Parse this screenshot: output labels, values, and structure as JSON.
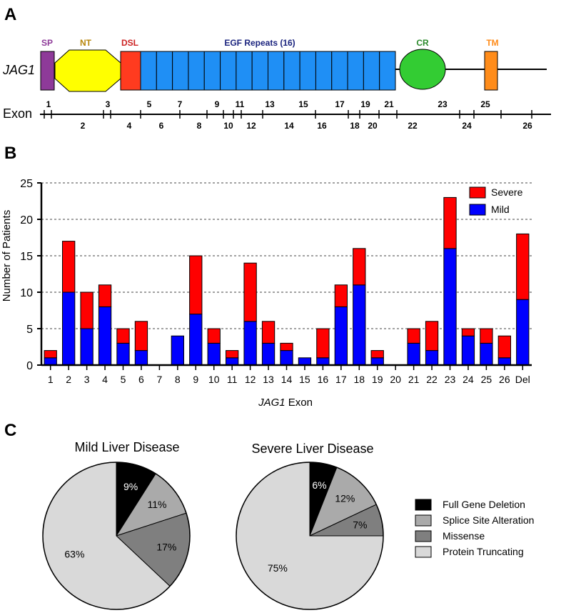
{
  "panels": {
    "a": "A",
    "b": "B",
    "c": "C"
  },
  "gene_label": "JAG1",
  "exon_label": "Exon",
  "colors": {
    "sp": "#8e3a99",
    "nt": "#ffff00",
    "dsl": "#ff3b1f",
    "egf": "#1f8ff5",
    "cr": "#33cc33",
    "tm": "#ff8c1a",
    "severe": "#ff0000",
    "mild": "#0000ff",
    "deletion": "#000000",
    "splice": "#aaaaaa",
    "missense": "#7f7f7f",
    "truncating": "#d9d9d9"
  },
  "domains": {
    "sp": "SP",
    "nt": "NT",
    "dsl": "DSL",
    "egf": "EGF Repeats (16)",
    "cr": "CR",
    "tm": "TM"
  },
  "exons_top": [
    "1",
    "3",
    "5",
    "7",
    "9",
    "11",
    "13",
    "15",
    "17",
    "19",
    "21",
    "23",
    "25"
  ],
  "exons_bottom": [
    "2",
    "4",
    "6",
    "8",
    "10",
    "12",
    "14",
    "16",
    "18",
    "20",
    "22",
    "24",
    "26"
  ],
  "chart_data": [
    {
      "type": "bar",
      "stacked": true,
      "categories": [
        "1",
        "2",
        "3",
        "4",
        "5",
        "6",
        "7",
        "8",
        "9",
        "10",
        "11",
        "12",
        "13",
        "14",
        "15",
        "16",
        "17",
        "18",
        "19",
        "20",
        "21",
        "22",
        "23",
        "24",
        "25",
        "26",
        "Del"
      ],
      "series": [
        {
          "name": "Mild",
          "values": [
            1,
            10,
            5,
            8,
            3,
            2,
            0,
            4,
            7,
            3,
            1,
            6,
            3,
            2,
            1,
            1,
            8,
            11,
            1,
            0,
            3,
            2,
            16,
            4,
            3,
            1,
            9
          ]
        },
        {
          "name": "Severe",
          "values": [
            1,
            7,
            5,
            3,
            2,
            4,
            0,
            0,
            8,
            2,
            1,
            8,
            3,
            1,
            0,
            4,
            3,
            5,
            1,
            0,
            2,
            4,
            7,
            1,
            2,
            3,
            9
          ]
        }
      ],
      "legend": [
        "Severe",
        "Mild"
      ],
      "legend_position": "top-right",
      "xlabel_italic": "JAG1",
      "xlabel_rest": " Exon",
      "ylabel": "Number of Patients",
      "ylim": [
        0,
        25
      ],
      "yticks": [
        0,
        5,
        10,
        15,
        20,
        25
      ],
      "grid": true
    },
    {
      "type": "pie",
      "title": "Mild Liver Disease",
      "slices": [
        {
          "label": "Full Gene Deletion",
          "value": 9,
          "text": "9%"
        },
        {
          "label": "Splice Site Alteration",
          "value": 11,
          "text": "11%"
        },
        {
          "label": "Missense",
          "value": 17,
          "text": "17%"
        },
        {
          "label": "Protein Truncating",
          "value": 63,
          "text": "63%"
        }
      ]
    },
    {
      "type": "pie",
      "title": "Severe Liver Disease",
      "slices": [
        {
          "label": "Full Gene Deletion",
          "value": 6,
          "text": "6%"
        },
        {
          "label": "Splice Site Alteration",
          "value": 12,
          "text": "12%"
        },
        {
          "label": "Missense",
          "value": 7,
          "text": "7%"
        },
        {
          "label": "Protein Truncating",
          "value": 75,
          "text": "75%"
        }
      ]
    }
  ],
  "pie_legend": [
    "Full Gene Deletion",
    "Splice Site Alteration",
    "Missense",
    "Protein Truncating"
  ]
}
